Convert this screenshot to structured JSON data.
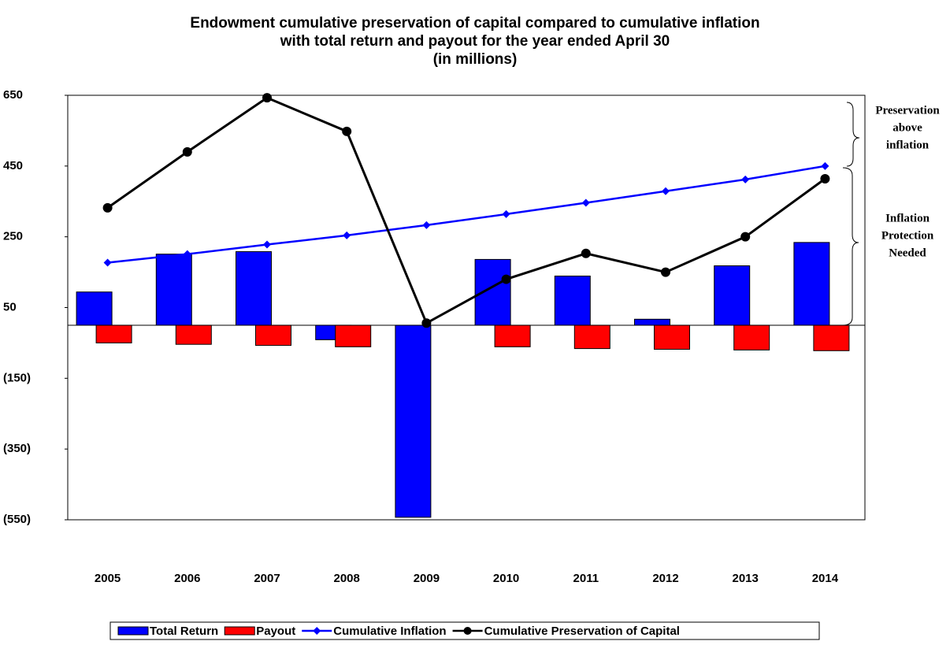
{
  "chart_data": {
    "type": "bar",
    "title": [
      "Endowment cumulative preservation of capital compared to cumulative inflation",
      "with total return and payout for the year ended April 30",
      "(in millions)"
    ],
    "categories": [
      "2005",
      "2006",
      "2007",
      "2008",
      "2009",
      "2010",
      "2011",
      "2012",
      "2013",
      "2014"
    ],
    "series": [
      {
        "name": "Total Return",
        "type": "bar",
        "color": "#0000ff",
        "values": [
          94,
          201,
          208,
          -41,
          -543,
          186,
          139,
          17,
          168,
          234
        ]
      },
      {
        "name": "Payout",
        "type": "bar",
        "color": "#ff0000",
        "values": [
          -50,
          -54,
          -57,
          -61,
          null,
          -61,
          -66,
          -68,
          -70,
          -72
        ]
      },
      {
        "name": "Cumulative Inflation",
        "type": "line",
        "marker": "diamond",
        "color": "#0000ff",
        "values": [
          177,
          201,
          228,
          254,
          283,
          314,
          346,
          379,
          412,
          450
        ]
      },
      {
        "name": "Cumulative Preservation of Capital",
        "type": "line",
        "marker": "circle",
        "color": "#000000",
        "values": [
          332,
          490,
          643,
          548,
          6,
          130,
          203,
          150,
          250,
          414
        ]
      }
    ],
    "ylim": [
      -550,
      650
    ],
    "yticks": [
      650,
      450,
      250,
      50,
      {
        "value": -150,
        "label": "(150)"
      },
      {
        "value": -350,
        "label": "(350)"
      },
      {
        "value": -550,
        "label": "(550)"
      }
    ],
    "annotations": [
      {
        "lines": [
          "Preservation",
          "above",
          "inflation"
        ]
      },
      {
        "lines": [
          "Inflation",
          "Protection",
          "Needed"
        ]
      }
    ],
    "legend": "bottom"
  }
}
